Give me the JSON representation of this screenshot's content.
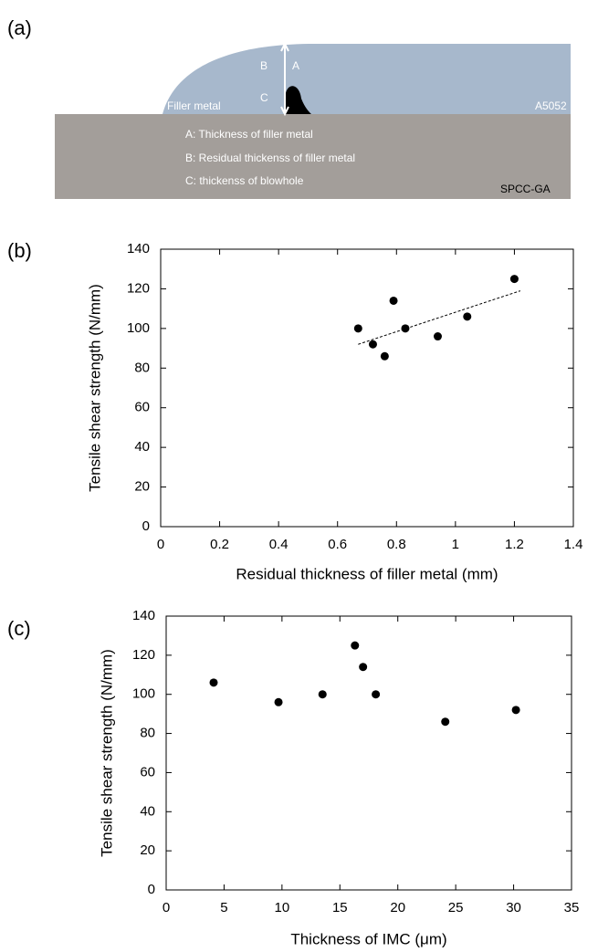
{
  "panel_labels": [
    "(a)",
    "(b)",
    "(c)"
  ],
  "diagram": {
    "labels": {
      "b": "B",
      "a": "A",
      "c": "C",
      "filler": "Filler metal",
      "base_al": "A5052",
      "steel": "SPCC-GA"
    },
    "legend": [
      "A: Thickness of filler metal",
      "B: Residual thickenss of filler metal",
      "C: thickenss of blowhole"
    ]
  },
  "chart_data": [
    {
      "type": "scatter",
      "x_label": "Residual thickness of filler metal  (mm)",
      "y_label": "Tensile shear strength  (N/mm)",
      "x": [
        0.67,
        0.72,
        0.76,
        0.79,
        0.83,
        0.94,
        1.04,
        1.2
      ],
      "values": [
        100,
        92,
        86,
        114,
        100,
        96,
        106,
        125
      ],
      "color": "#000000",
      "trendline": {
        "x": [
          0.67,
          1.22
        ],
        "y": [
          92,
          119
        ]
      },
      "xlim": [
        0,
        1.4
      ],
      "xticks": [
        0,
        0.2,
        0.4,
        0.6,
        0.8,
        1,
        1.2,
        1.4
      ],
      "ylim": [
        0,
        140
      ],
      "yticks": [
        0,
        20,
        40,
        60,
        80,
        100,
        120,
        140
      ]
    },
    {
      "type": "scatter",
      "x_label": "Thickness of IMC (μm)",
      "y_label": "Tensile shear strength  (N/mm)",
      "x": [
        4.1,
        9.7,
        13.5,
        16.3,
        17.0,
        18.1,
        24.1,
        30.2
      ],
      "values": [
        106,
        96,
        100,
        125,
        114,
        100,
        86,
        92
      ],
      "color": "#000000",
      "xlim": [
        0,
        35
      ],
      "xticks": [
        0,
        5,
        10,
        15,
        20,
        25,
        30,
        35
      ],
      "ylim": [
        0,
        140
      ],
      "yticks": [
        0,
        20,
        40,
        60,
        80,
        100,
        120,
        140
      ]
    }
  ]
}
